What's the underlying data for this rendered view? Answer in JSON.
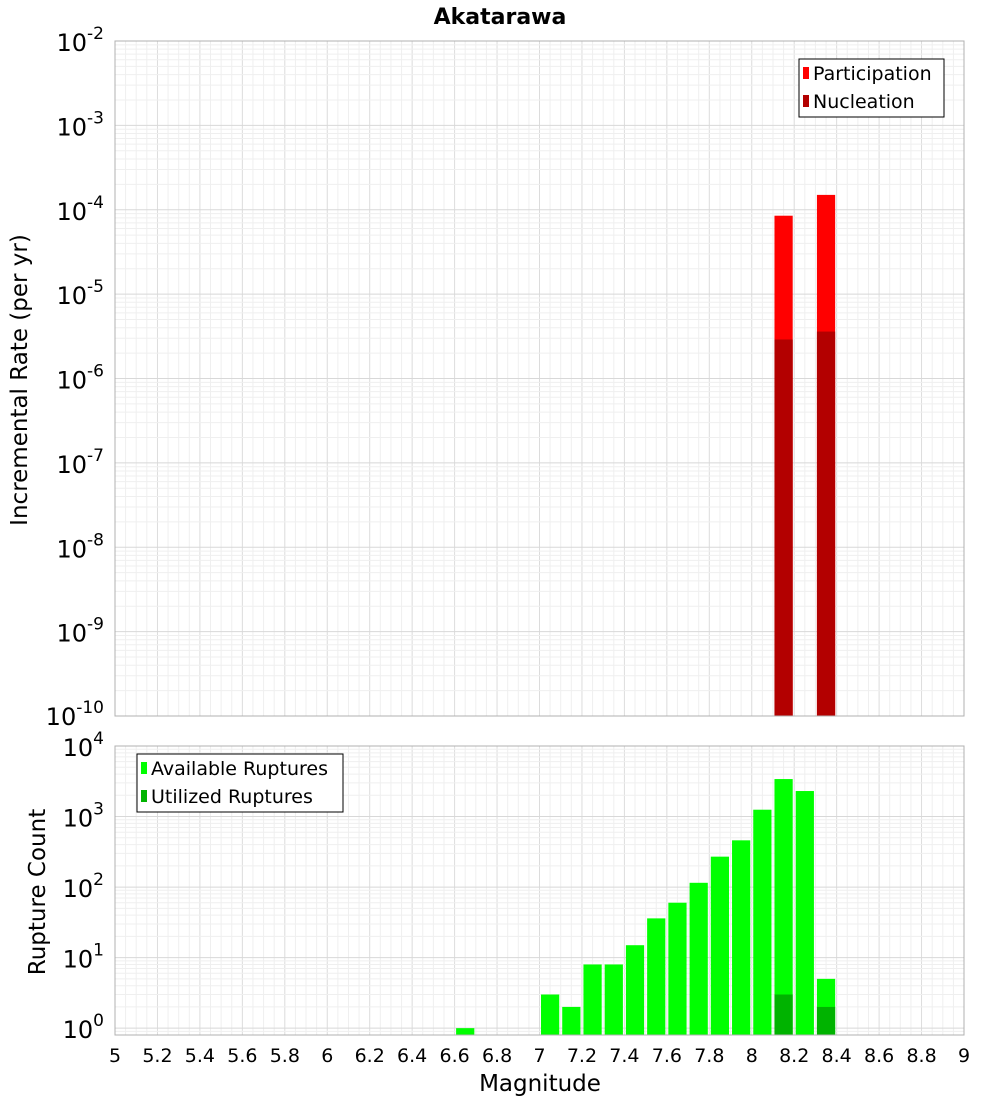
{
  "chart_data": [
    {
      "type": "bar",
      "title": "Akatarawa",
      "xlabel": "",
      "ylabel": "Incremental Rate (per yr)",
      "xlim": [
        5,
        9
      ],
      "ylim": [
        1e-10,
        0.01
      ],
      "yscale": "log",
      "bin_width": 0.1,
      "grid": true,
      "legend_position": "top-right",
      "ytick_exponents": [
        "-10",
        "-9",
        "-8",
        "-7",
        "-6",
        "-5",
        "-4",
        "-3",
        "-2"
      ],
      "series": [
        {
          "name": "Participation",
          "color": "#ff0000",
          "x": [
            8.15,
            8.35
          ],
          "values": [
            8.5e-05,
            0.00015
          ]
        },
        {
          "name": "Nucleation",
          "color": "#b30000",
          "x": [
            8.15,
            8.35
          ],
          "values": [
            2.9e-06,
            3.6e-06
          ]
        }
      ]
    },
    {
      "type": "bar",
      "title": "",
      "xlabel": "Magnitude",
      "ylabel": "Rupture Count",
      "xlim": [
        5,
        9
      ],
      "ylim": [
        0.8,
        10000.0
      ],
      "yscale": "log",
      "bin_width": 0.1,
      "grid": true,
      "legend_position": "top-left",
      "ytick_exponents": [
        "0",
        "1",
        "2",
        "3",
        "4"
      ],
      "xticks": [
        "5",
        "5.2",
        "5.4",
        "5.6",
        "5.8",
        "6",
        "6.2",
        "6.4",
        "6.6",
        "6.8",
        "7",
        "7.2",
        "7.4",
        "7.6",
        "7.8",
        "8",
        "8.2",
        "8.4",
        "8.6",
        "8.8",
        "9"
      ],
      "series": [
        {
          "name": "Available Ruptures",
          "color": "#00ff00",
          "x": [
            6.65,
            7.05,
            7.15,
            7.25,
            7.35,
            7.45,
            7.55,
            7.65,
            7.75,
            7.85,
            7.95,
            8.05,
            8.15,
            8.25,
            8.35
          ],
          "values": [
            1,
            3,
            2,
            8,
            8,
            15,
            36,
            60,
            115,
            270,
            460,
            1250,
            3400,
            2300,
            5
          ]
        },
        {
          "name": "Utilized Ruptures",
          "color": "#00b300",
          "x": [
            8.15,
            8.35
          ],
          "values": [
            3,
            2
          ]
        }
      ]
    }
  ]
}
